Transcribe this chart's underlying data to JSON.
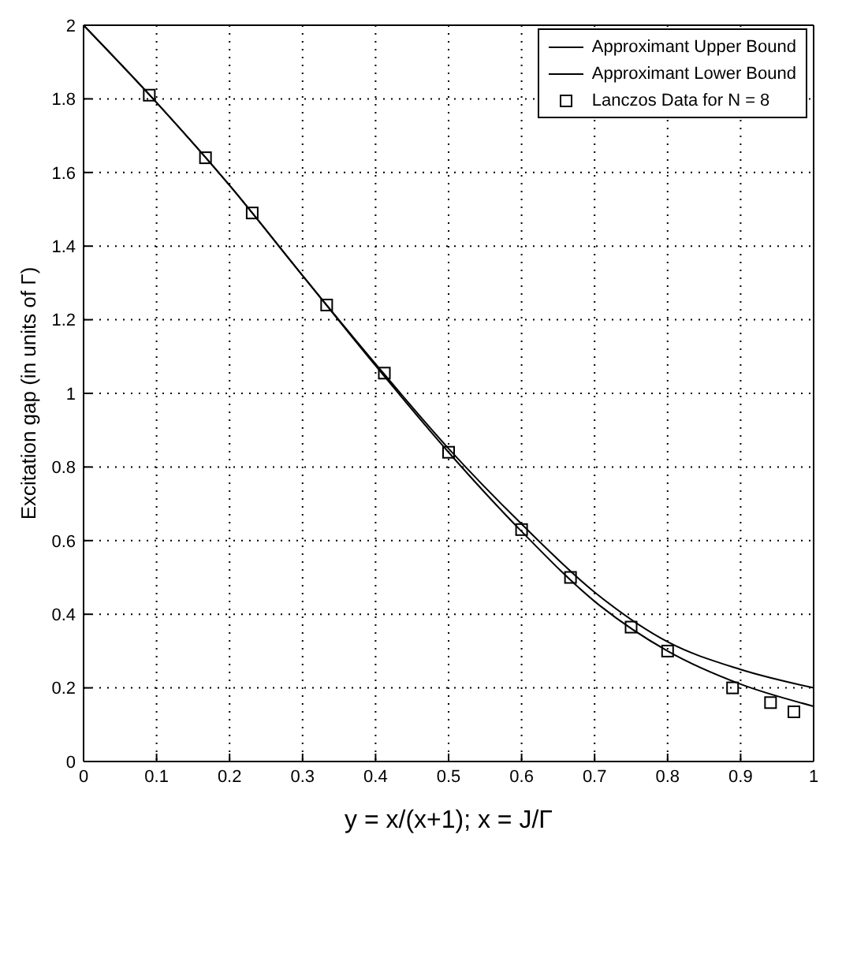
{
  "chart_data": {
    "type": "line",
    "xlabel": "y = x/(x+1); x = J/Γ",
    "ylabel": "Excitation gap (in units of Γ)",
    "xlim": [
      0,
      1
    ],
    "xticks": [
      0,
      0.1,
      0.2,
      0.3,
      0.4,
      0.5,
      0.6,
      0.7,
      0.8,
      0.9,
      1
    ],
    "ylim": [
      0,
      2
    ],
    "yticks": [
      0,
      0.2,
      0.4,
      0.6,
      0.8,
      1,
      1.2,
      1.4,
      1.6,
      1.8,
      2
    ],
    "grid": true,
    "legend": "top right",
    "series": [
      {
        "name": "Approximant Upper Bound",
        "color": "#000000",
        "marker": "none",
        "line_style": "solid",
        "x": [
          0,
          0.1,
          0.2,
          0.3,
          0.4,
          0.5,
          0.6,
          0.7,
          0.8,
          0.9,
          1
        ],
        "values": [
          2,
          1.79,
          1.565,
          1.32,
          1.08,
          0.85,
          0.645,
          0.46,
          0.325,
          0.25,
          0.2
        ]
      },
      {
        "name": "Approximant Lower Bound",
        "color": "#000000",
        "marker": "none",
        "line_style": "solid",
        "x": [
          0,
          0.1,
          0.2,
          0.3,
          0.4,
          0.5,
          0.6,
          0.7,
          0.8,
          0.9,
          1
        ],
        "values": [
          2,
          1.79,
          1.565,
          1.32,
          1.075,
          0.84,
          0.625,
          0.435,
          0.3,
          0.21,
          0.15
        ]
      },
      {
        "name": "Lanczos Data for N = 8",
        "type": "scatter",
        "color": "#000000",
        "marker": "square",
        "x": [
          0.09,
          0.167,
          0.231,
          0.333,
          0.412,
          0.5,
          0.6,
          0.667,
          0.75,
          0.8,
          0.889,
          0.941,
          0.973
        ],
        "values": [
          1.81,
          1.64,
          1.49,
          1.24,
          1.055,
          0.84,
          0.63,
          0.5,
          0.365,
          0.3,
          0.2,
          0.16,
          0.135
        ]
      }
    ]
  }
}
